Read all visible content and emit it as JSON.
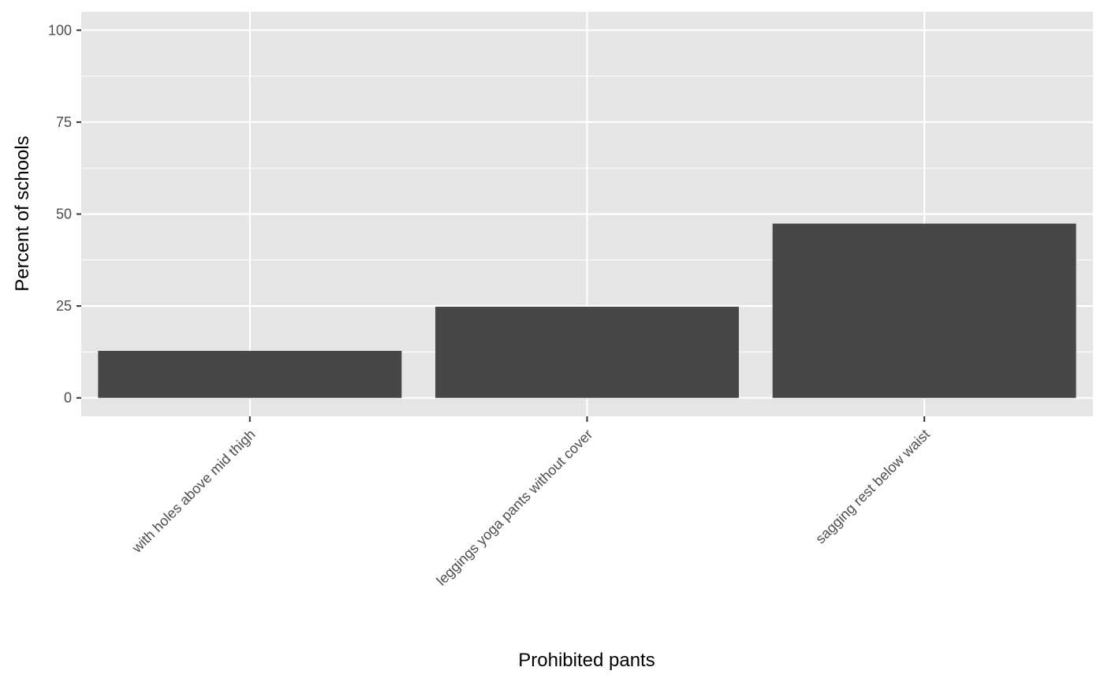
{
  "chart_data": {
    "type": "bar",
    "xlabel": "Prohibited pants",
    "ylabel": "Percent of schools",
    "categories": [
      "with holes above mid thigh",
      "leggings yoga pants  without cover",
      "sagging rest below waist"
    ],
    "values": [
      12.8,
      24.8,
      47.4
    ],
    "ylim": [
      -5,
      105
    ],
    "yticks": [
      0,
      25,
      50,
      75,
      100
    ],
    "grid": true,
    "legend": "none",
    "colors": {
      "panel": "#e5e5e5",
      "grid": "#ffffff",
      "bar": "#474747",
      "tick": "#333333",
      "text": "#4d4d4d"
    }
  }
}
